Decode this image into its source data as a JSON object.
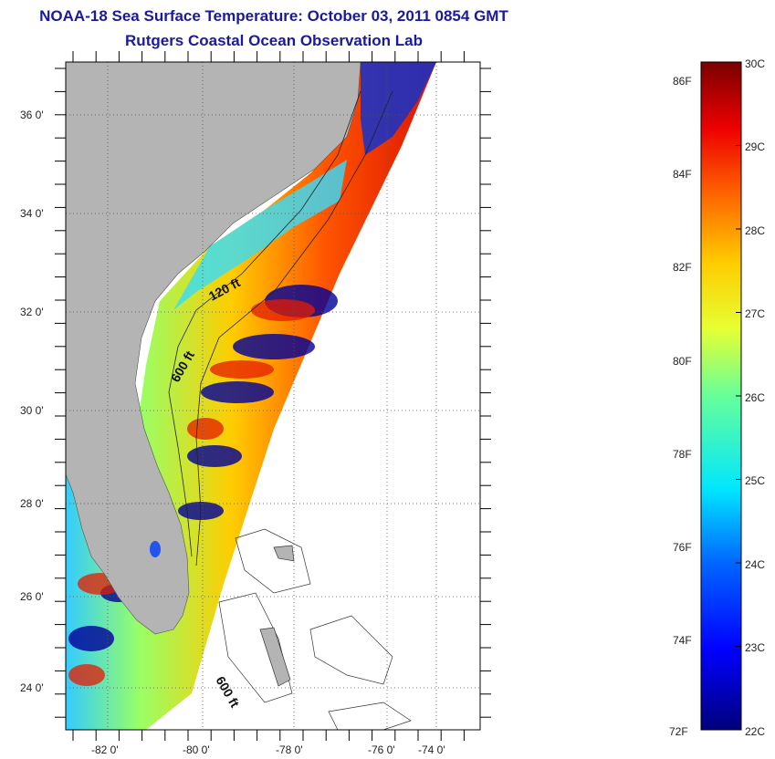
{
  "header": {
    "title": "NOAA-18 Sea Surface Temperature:  October 03, 2011 0854 GMT",
    "subtitle": "Rutgers Coastal Ocean Observation Lab"
  },
  "map": {
    "lon_ticks": [
      "-82 0'",
      "-80 0'",
      "-78 0'",
      "-76 0'",
      "-74 0'"
    ],
    "lat_ticks": [
      "36 0'",
      "34 0'",
      "32 0'",
      "30 0'",
      "28 0'",
      "26 0'",
      "24 0'"
    ],
    "contour_labels": [
      "120 ft",
      "600 ft",
      "600 ft"
    ],
    "colors": {
      "land": "#b4b4b4",
      "no_data": "#ffffff",
      "cold": "#00008c",
      "warm": "#c80000"
    }
  },
  "colorbar": {
    "fahrenheit_labels": [
      "86F",
      "84F",
      "82F",
      "80F",
      "78F",
      "76F",
      "74F",
      "72F"
    ],
    "celsius_labels": [
      "30C",
      "29C",
      "28C",
      "27C",
      "26C",
      "25C",
      "24C",
      "23C",
      "22C"
    ],
    "min_c": 22,
    "max_c": 30
  }
}
